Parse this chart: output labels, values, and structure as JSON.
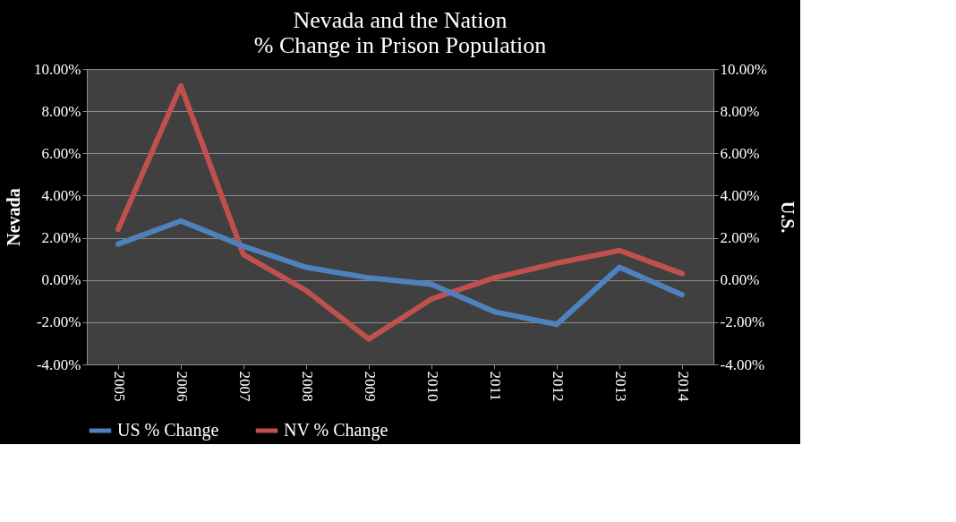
{
  "chart_data": {
    "type": "line",
    "title": [
      "Nevada and the Nation",
      "% Change in Prison Population"
    ],
    "ylabel": "Nevada",
    "y2label": "U.S.",
    "categories": [
      "2005",
      "2006",
      "2007",
      "2008",
      "2009",
      "2010",
      "2011",
      "2012",
      "2013",
      "2014"
    ],
    "series": [
      {
        "name": "US % Change",
        "color": "#4f81bd",
        "axis": "y2",
        "values": [
          1.7,
          2.8,
          1.6,
          0.6,
          0.1,
          -0.2,
          -1.5,
          -2.1,
          0.6,
          -0.7
        ]
      },
      {
        "name": "NV % Change",
        "color": "#c0504d",
        "axis": "y",
        "values": [
          2.4,
          9.2,
          1.2,
          -0.5,
          -2.8,
          -0.9,
          0.1,
          0.8,
          1.4,
          0.3
        ]
      }
    ],
    "ylim": [
      -4,
      10
    ],
    "yticks": [
      {
        "value": -4,
        "label": "-4.00%"
      },
      {
        "value": -2,
        "label": "-2.00%"
      },
      {
        "value": 0,
        "label": "0.00%"
      },
      {
        "value": 2,
        "label": "2.00%"
      },
      {
        "value": 4,
        "label": "4.00%"
      },
      {
        "value": 6,
        "label": "6.00%"
      },
      {
        "value": 8,
        "label": "8.00%"
      },
      {
        "value": 10,
        "label": "10.00%"
      }
    ],
    "y2lim": [
      -4,
      10
    ],
    "y2ticks": [
      {
        "value": -4,
        "label": "-4.00%"
      },
      {
        "value": -2,
        "label": "-2.00%"
      },
      {
        "value": 0,
        "label": "0.00%"
      },
      {
        "value": 2,
        "label": "2.00%"
      },
      {
        "value": 4,
        "label": "4.00%"
      },
      {
        "value": 6,
        "label": "6.00%"
      },
      {
        "value": 8,
        "label": "8.00%"
      },
      {
        "value": 10,
        "label": "10.00%"
      }
    ],
    "grid": "y",
    "legend": "bottom",
    "marker": "none",
    "line_style": "solid"
  }
}
